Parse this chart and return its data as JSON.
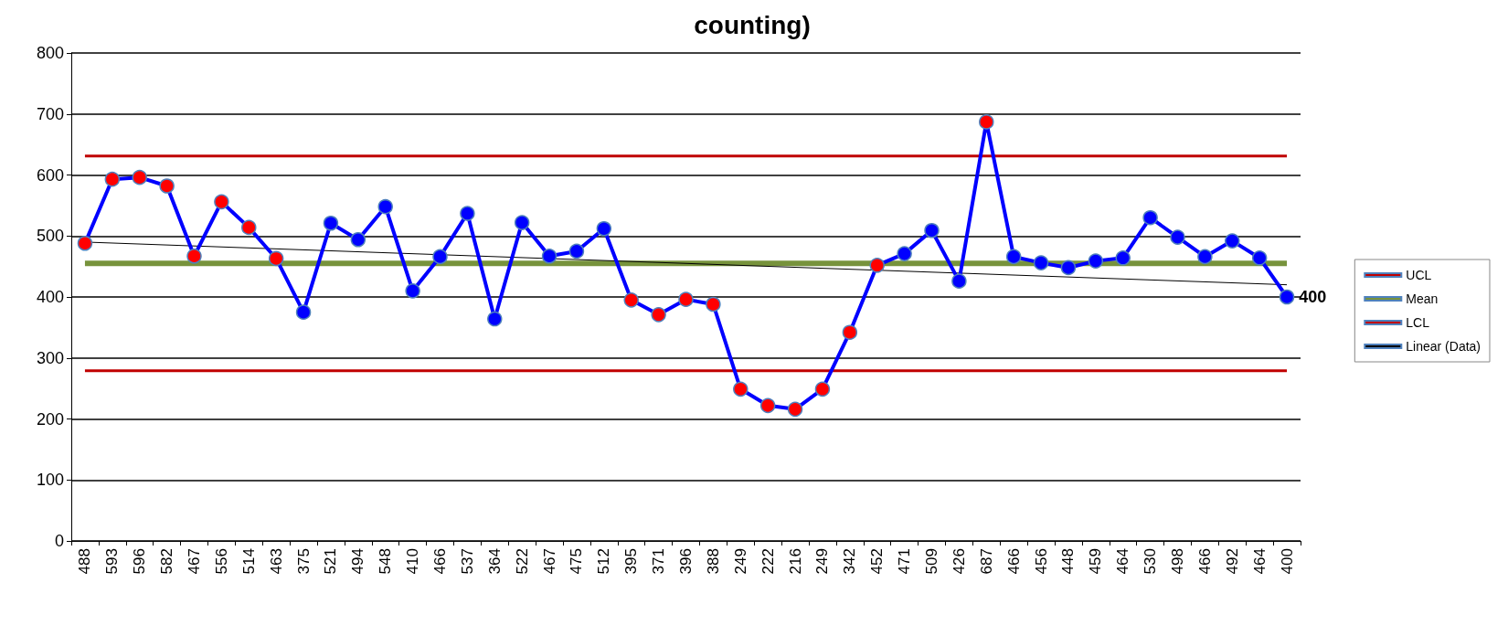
{
  "chart_data": {
    "type": "line",
    "title": "counting)",
    "categories": [
      "488",
      "593",
      "596",
      "582",
      "467",
      "556",
      "514",
      "463",
      "375",
      "521",
      "494",
      "548",
      "410",
      "466",
      "537",
      "364",
      "522",
      "467",
      "475",
      "512",
      "395",
      "371",
      "396",
      "388",
      "249",
      "222",
      "216",
      "249",
      "342",
      "452",
      "471",
      "509",
      "426",
      "687",
      "466",
      "456",
      "448",
      "459",
      "464",
      "530",
      "498",
      "466",
      "492",
      "464",
      "400"
    ],
    "series": [
      {
        "color": "#0000ff",
        "marker": "circle",
        "values": [
          488,
          593,
          596,
          582,
          467,
          556,
          514,
          463,
          375,
          521,
          494,
          548,
          410,
          466,
          537,
          364,
          522,
          467,
          475,
          512,
          395,
          371,
          396,
          388,
          249,
          222,
          216,
          249,
          342,
          452,
          471,
          509,
          426,
          687,
          466,
          456,
          448,
          459,
          464,
          530,
          498,
          466,
          492,
          464,
          400
        ],
        "colors": [
          "#ff0000",
          "#ff0000",
          "#ff0000",
          "#ff0000",
          "#ff0000",
          "#ff0000",
          "#ff0000",
          "#ff0000",
          "#0000ff",
          "#0000ff",
          "#0000ff",
          "#0000ff",
          "#0000ff",
          "#0000ff",
          "#0000ff",
          "#0000ff",
          "#0000ff",
          "#0000ff",
          "#0000ff",
          "#0000ff",
          "#ff0000",
          "#ff0000",
          "#ff0000",
          "#ff0000",
          "#ff0000",
          "#ff0000",
          "#ff0000",
          "#ff0000",
          "#ff0000",
          "#ff0000",
          "#0000ff",
          "#0000ff",
          "#0000ff",
          "#ff0000",
          "#0000ff",
          "#0000ff",
          "#0000ff",
          "#0000ff",
          "#0000ff",
          "#0000ff",
          "#0000ff",
          "#0000ff",
          "#0000ff",
          "#0000ff",
          "#0000ff"
        ],
        "value_labels": [
          null,
          null,
          null,
          null,
          null,
          null,
          null,
          null,
          null,
          null,
          null,
          null,
          null,
          null,
          null,
          null,
          null,
          null,
          null,
          null,
          null,
          null,
          null,
          null,
          null,
          null,
          null,
          null,
          null,
          null,
          null,
          null,
          null,
          null,
          null,
          null,
          null,
          null,
          null,
          null,
          null,
          null,
          null,
          null,
          "400"
        ]
      },
      {
        "name": "UCL",
        "color": "#c00000",
        "values": [
          631,
          631,
          631,
          631,
          631,
          631,
          631,
          631,
          631,
          631,
          631,
          631,
          631,
          631,
          631,
          631,
          631,
          631,
          631,
          631,
          631,
          631,
          631,
          631,
          631,
          631,
          631,
          631,
          631,
          631,
          631,
          631,
          631,
          631,
          631,
          631,
          631,
          631,
          631,
          631,
          631,
          631,
          631,
          631,
          631
        ]
      },
      {
        "name": "Mean",
        "color": "#77933c",
        "values": [
          455,
          455,
          455,
          455,
          455,
          455,
          455,
          455,
          455,
          455,
          455,
          455,
          455,
          455,
          455,
          455,
          455,
          455,
          455,
          455,
          455,
          455,
          455,
          455,
          455,
          455,
          455,
          455,
          455,
          455,
          455,
          455,
          455,
          455,
          455,
          455,
          455,
          455,
          455,
          455,
          455,
          455,
          455,
          455,
          455
        ]
      },
      {
        "name": "LCL",
        "color": "#c00000",
        "values": [
          279,
          279,
          279,
          279,
          279,
          279,
          279,
          279,
          279,
          279,
          279,
          279,
          279,
          279,
          279,
          279,
          279,
          279,
          279,
          279,
          279,
          279,
          279,
          279,
          279,
          279,
          279,
          279,
          279,
          279,
          279,
          279,
          279,
          279,
          279,
          279,
          279,
          279,
          279,
          279,
          279,
          279,
          279,
          279,
          279
        ]
      },
      {
        "name": "Linear (Data)",
        "color": "#000000",
        "values": [
          490,
          null,
          null,
          null,
          null,
          null,
          null,
          null,
          null,
          null,
          null,
          null,
          null,
          null,
          null,
          null,
          null,
          null,
          null,
          null,
          null,
          null,
          null,
          null,
          null,
          null,
          null,
          null,
          null,
          null,
          null,
          null,
          null,
          null,
          null,
          null,
          null,
          null,
          null,
          null,
          null,
          null,
          null,
          null,
          420
        ]
      }
    ],
    "ylim": [
      0,
      800
    ],
    "yticks": [
      0,
      100,
      200,
      300,
      400,
      500,
      600,
      700,
      800
    ],
    "grid": "y",
    "legend": "right"
  }
}
